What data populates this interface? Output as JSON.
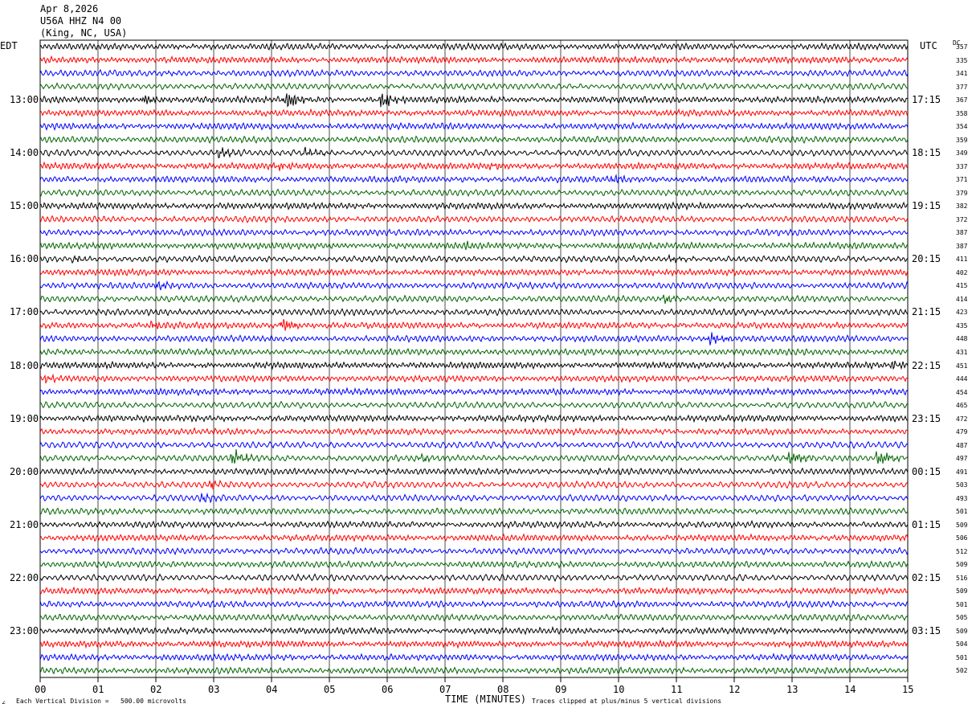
{
  "header": {
    "date": "Apr 8,2026",
    "station": "U56A HHZ N4 00",
    "location": "(King, NC, USA)"
  },
  "left_axis_label": "EDT",
  "right_axis_label": "UTC",
  "dc_label": "DC",
  "footer": {
    "scale_prefix": "Each Vertical Division =",
    "scale_value": "500.00 microvolts",
    "clip_note": "Traces clipped at plus/minus 5 vertical divisions",
    "corner_mark": "∠"
  },
  "chart_data": {
    "type": "line",
    "title": "U56A HHZ N4 00",
    "xlabel": "TIME (MINUTES)",
    "ylabel": "",
    "xlim": [
      0,
      15
    ],
    "x_ticks": [
      "00",
      "01",
      "02",
      "03",
      "04",
      "05",
      "06",
      "07",
      "08",
      "09",
      "10",
      "11",
      "12",
      "13",
      "14",
      "15"
    ],
    "grid": true,
    "trace_colors": [
      "#000000",
      "#ff0000",
      "#0000ff",
      "#006400"
    ],
    "left_time_labels": [
      "13:00",
      "14:00",
      "15:00",
      "16:00",
      "17:00",
      "18:00",
      "19:00",
      "20:00",
      "21:00",
      "22:00",
      "23:00"
    ],
    "right_time_labels": [
      "17:15",
      "18:15",
      "19:15",
      "20:15",
      "21:15",
      "22:15",
      "23:15",
      "00:15",
      "01:15",
      "02:15",
      "03:15"
    ],
    "dc_offsets": [
      357,
      335,
      341,
      377,
      367,
      358,
      354,
      359,
      349,
      337,
      371,
      379,
      382,
      372,
      387,
      387,
      411,
      402,
      415,
      414,
      423,
      435,
      448,
      431,
      451,
      444,
      454,
      465,
      472,
      479,
      487,
      497,
      491,
      503,
      493,
      501,
      509,
      506,
      512,
      509,
      516,
      509,
      501,
      505,
      509,
      504,
      501,
      502
    ],
    "events": [
      {
        "row": 4,
        "minute": 4.25,
        "strength": 9
      },
      {
        "row": 4,
        "minute": 5.9,
        "strength": 8
      },
      {
        "row": 4,
        "minute": 1.8,
        "strength": 4
      },
      {
        "row": 8,
        "minute": 3.1,
        "strength": 4
      },
      {
        "row": 8,
        "minute": 4.6,
        "strength": 4
      },
      {
        "row": 9,
        "minute": 4.1,
        "strength": 3
      },
      {
        "row": 9,
        "minute": 7.8,
        "strength": 3
      },
      {
        "row": 10,
        "minute": 9.9,
        "strength": 3
      },
      {
        "row": 15,
        "minute": 7.4,
        "strength": 3
      },
      {
        "row": 16,
        "minute": 0.6,
        "strength": 3
      },
      {
        "row": 16,
        "minute": 10.9,
        "strength": 3
      },
      {
        "row": 18,
        "minute": 2.05,
        "strength": 4
      },
      {
        "row": 19,
        "minute": 10.8,
        "strength": 4
      },
      {
        "row": 21,
        "minute": 4.2,
        "strength": 6
      },
      {
        "row": 21,
        "minute": 1.95,
        "strength": 3
      },
      {
        "row": 22,
        "minute": 11.6,
        "strength": 6
      },
      {
        "row": 24,
        "minute": 14.7,
        "strength": 3
      },
      {
        "row": 25,
        "minute": 0.1,
        "strength": 3
      },
      {
        "row": 31,
        "minute": 3.35,
        "strength": 7
      },
      {
        "row": 31,
        "minute": 12.95,
        "strength": 8
      },
      {
        "row": 31,
        "minute": 14.5,
        "strength": 8
      },
      {
        "row": 31,
        "minute": 6.6,
        "strength": 3
      },
      {
        "row": 33,
        "minute": 2.95,
        "strength": 4
      },
      {
        "row": 34,
        "minute": 2.8,
        "strength": 4
      }
    ]
  }
}
